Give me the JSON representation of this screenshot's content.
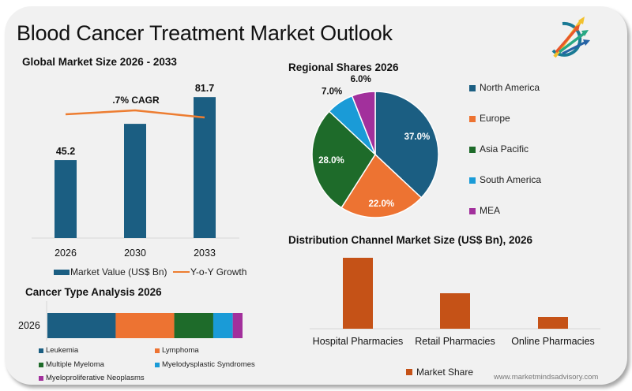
{
  "header": {
    "title": "Blood Cancer Treatment Market Outlook",
    "logo": "rising-arrows-logo-icon"
  },
  "colors": {
    "navy": "#1b5e82",
    "orange": "#ed7332",
    "green": "#1e6b2a",
    "sky": "#1a9bd7",
    "purple": "#a2309c",
    "rust": "#c55217",
    "line": "#ed7d31",
    "background": "#f1f1f1"
  },
  "footer": {
    "website": "www.marketmindsadvisory.com"
  },
  "chart_data": [
    {
      "id": "global-market-size",
      "type": "bar",
      "title": "Global Market Size 2026 - 2033",
      "categories": [
        "2026",
        "2030",
        "2033"
      ],
      "series": [
        {
          "name": "Market Value (US$ Bn)",
          "values": [
            45.2,
            66.2,
            81.7
          ],
          "data_labels": [
            "45.2",
            "",
            "81.7"
          ]
        },
        {
          "name": "Y-o-Y Growth",
          "type": "line",
          "values": [
            0.55,
            0.6,
            0.51
          ]
        }
      ],
      "annotation": ".7% CAGR",
      "ylim": [
        0,
        90
      ],
      "grid": false,
      "legend": "bottom"
    },
    {
      "id": "regional-shares",
      "type": "pie",
      "title": "Regional Shares 2026",
      "categories": [
        "North America",
        "Europe",
        "Asia Pacific",
        "South America",
        "MEA"
      ],
      "values": [
        37.0,
        22.0,
        28.0,
        7.0,
        6.0
      ],
      "data_labels": [
        "37.0%",
        "22.0%",
        "28.0%",
        "7.0%",
        "6.0%"
      ],
      "legend": "right"
    },
    {
      "id": "cancer-type-analysis",
      "type": "bar",
      "orientation": "horizontal-stacked",
      "title": "Cancer Type Analysis 2026",
      "categories": [
        "2026"
      ],
      "series": [
        {
          "name": "Leukemia",
          "values": [
            35
          ]
        },
        {
          "name": "Lymphoma",
          "values": [
            30
          ]
        },
        {
          "name": "Multiple Myeloma",
          "values": [
            20
          ]
        },
        {
          "name": "Myelodysplastic Syndromes",
          "values": [
            10
          ]
        },
        {
          "name": "Myeloproliferative Neoplasms",
          "values": [
            5
          ]
        }
      ],
      "xlim": [
        0,
        100
      ],
      "legend": "bottom"
    },
    {
      "id": "distribution-channel",
      "type": "bar",
      "title": "Distribution Channel Market Size (US$ Bn), 2026",
      "categories": [
        "Hospital Pharmacies",
        "Retail Pharmacies",
        "Online Pharmacies"
      ],
      "series": [
        {
          "name": "Market Share",
          "values": [
            60,
            30,
            10
          ]
        }
      ],
      "ylim": [
        0,
        65
      ],
      "legend": "bottom"
    }
  ]
}
